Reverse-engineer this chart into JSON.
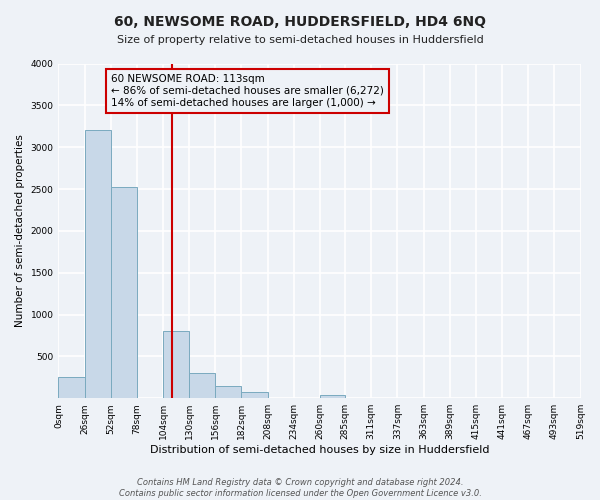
{
  "title": "60, NEWSOME ROAD, HUDDERSFIELD, HD4 6NQ",
  "subtitle": "Size of property relative to semi-detached houses in Huddersfield",
  "xlabel": "Distribution of semi-detached houses by size in Huddersfield",
  "ylabel": "Number of semi-detached properties",
  "footnote1": "Contains HM Land Registry data © Crown copyright and database right 2024.",
  "footnote2": "Contains public sector information licensed under the Open Government Licence v3.0.",
  "bin_edges": [
    0,
    26,
    52,
    78,
    104,
    130,
    156,
    182,
    208,
    234,
    260,
    285,
    311,
    337,
    363,
    389,
    415,
    441,
    467,
    493,
    519
  ],
  "bar_heights": [
    250,
    3200,
    2525,
    0,
    800,
    300,
    150,
    80,
    0,
    0,
    40,
    0,
    0,
    0,
    0,
    0,
    0,
    0,
    0,
    0
  ],
  "bar_color": "#c8d8e8",
  "bar_edge_color": "#7aaabf",
  "property_value": 113,
  "vline_color": "#cc0000",
  "annotation_title": "60 NEWSOME ROAD: 113sqm",
  "annotation_line1": "← 86% of semi-detached houses are smaller (6,272)",
  "annotation_line2": "14% of semi-detached houses are larger (1,000) →",
  "annotation_box_color": "#cc0000",
  "ylim": [
    0,
    4000
  ],
  "yticks": [
    0,
    500,
    1000,
    1500,
    2000,
    2500,
    3000,
    3500,
    4000
  ],
  "tick_labels": [
    "0sqm",
    "26sqm",
    "52sqm",
    "78sqm",
    "104sqm",
    "130sqm",
    "156sqm",
    "182sqm",
    "208sqm",
    "234sqm",
    "260sqm",
    "285sqm",
    "311sqm",
    "337sqm",
    "363sqm",
    "389sqm",
    "415sqm",
    "441sqm",
    "467sqm",
    "493sqm",
    "519sqm"
  ],
  "background_color": "#eef2f7",
  "grid_color": "#ffffff",
  "title_fontsize": 10,
  "subtitle_fontsize": 8,
  "xlabel_fontsize": 8,
  "ylabel_fontsize": 7.5,
  "tick_fontsize": 6.5,
  "footnote_fontsize": 6
}
